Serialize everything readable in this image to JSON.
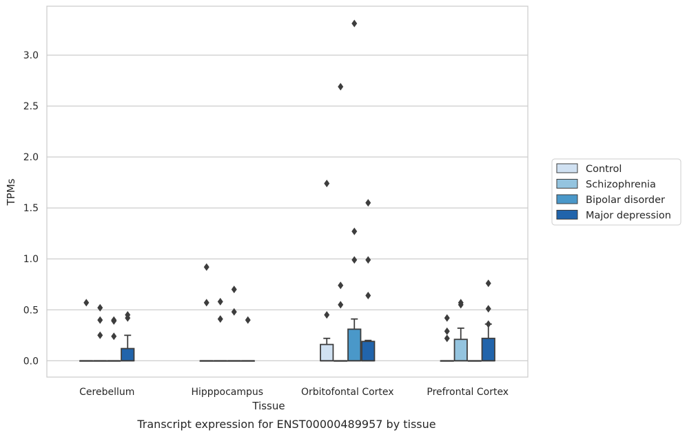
{
  "caption": "Transcript expression for ENST00000489957 by tissue",
  "chart_data": {
    "type": "box",
    "xlabel": "Tissue",
    "ylabel": "TPMs",
    "ylim": [
      -0.16,
      3.48
    ],
    "yticks": [
      "0.0",
      "0.5",
      "1.0",
      "1.5",
      "2.0",
      "2.5",
      "3.0"
    ],
    "categories": [
      "Cerebellum",
      "Hipppocampus",
      "Orbitofontal Cortex",
      "Prefrontal Cortex"
    ],
    "grid": "horizontal",
    "legend_position": "right",
    "series": [
      {
        "name": "Control",
        "color": "#d0e1f2",
        "boxes": [
          {
            "q1": 0,
            "median": 0,
            "q3": 0,
            "whisker_low": 0,
            "whisker_high": 0,
            "outliers": [
              0.57
            ]
          },
          {
            "q1": 0,
            "median": 0,
            "q3": 0,
            "whisker_low": 0,
            "whisker_high": 0,
            "outliers": [
              0.92,
              0.57
            ]
          },
          {
            "q1": 0,
            "median": 0,
            "q3": 0.16,
            "whisker_low": 0,
            "whisker_high": 0.22,
            "outliers": [
              1.74,
              0.45
            ]
          },
          {
            "q1": 0,
            "median": 0,
            "q3": 0,
            "whisker_low": 0,
            "whisker_high": 0,
            "outliers": [
              0.42,
              0.29,
              0.22
            ]
          }
        ]
      },
      {
        "name": "Schizophrenia",
        "color": "#94c4df",
        "boxes": [
          {
            "q1": 0,
            "median": 0,
            "q3": 0,
            "whisker_low": 0,
            "whisker_high": 0,
            "outliers": [
              0.52,
              0.4,
              0.25
            ]
          },
          {
            "q1": 0,
            "median": 0,
            "q3": 0,
            "whisker_low": 0,
            "whisker_high": 0,
            "outliers": [
              0.58,
              0.41
            ]
          },
          {
            "q1": 0,
            "median": 0,
            "q3": 0,
            "whisker_low": 0,
            "whisker_high": 0,
            "outliers": [
              2.69,
              0.74,
              0.55
            ]
          },
          {
            "q1": 0,
            "median": 0,
            "q3": 0.21,
            "whisker_low": 0,
            "whisker_high": 0.32,
            "outliers": [
              0.57,
              0.55
            ]
          }
        ]
      },
      {
        "name": "Bipolar disorder",
        "color": "#4a98c9",
        "boxes": [
          {
            "q1": 0,
            "median": 0,
            "q3": 0,
            "whisker_low": 0,
            "whisker_high": 0,
            "outliers": [
              0.4,
              0.39,
              0.24
            ]
          },
          {
            "q1": 0,
            "median": 0,
            "q3": 0,
            "whisker_low": 0,
            "whisker_high": 0,
            "outliers": [
              0.7,
              0.48
            ]
          },
          {
            "q1": 0,
            "median": 0,
            "q3": 0.31,
            "whisker_low": 0,
            "whisker_high": 0.41,
            "outliers": [
              3.31,
              1.27,
              0.99
            ]
          },
          {
            "q1": 0,
            "median": 0,
            "q3": 0,
            "whisker_low": 0,
            "whisker_high": 0,
            "outliers": []
          }
        ]
      },
      {
        "name": "Major depression",
        "color": "#2164ab",
        "boxes": [
          {
            "q1": 0,
            "median": 0,
            "q3": 0.12,
            "whisker_low": 0,
            "whisker_high": 0.25,
            "outliers": [
              0.45,
              0.42
            ]
          },
          {
            "q1": 0,
            "median": 0,
            "q3": 0,
            "whisker_low": 0,
            "whisker_high": 0,
            "outliers": [
              0.4
            ]
          },
          {
            "q1": 0,
            "median": 0,
            "q3": 0.19,
            "whisker_low": 0,
            "whisker_high": 0.2,
            "outliers": [
              1.55,
              0.99,
              0.64
            ]
          },
          {
            "q1": 0,
            "median": 0,
            "q3": 0.22,
            "whisker_low": 0,
            "whisker_high": 0.36,
            "outliers": [
              0.76,
              0.51,
              0.36
            ]
          }
        ]
      }
    ]
  }
}
